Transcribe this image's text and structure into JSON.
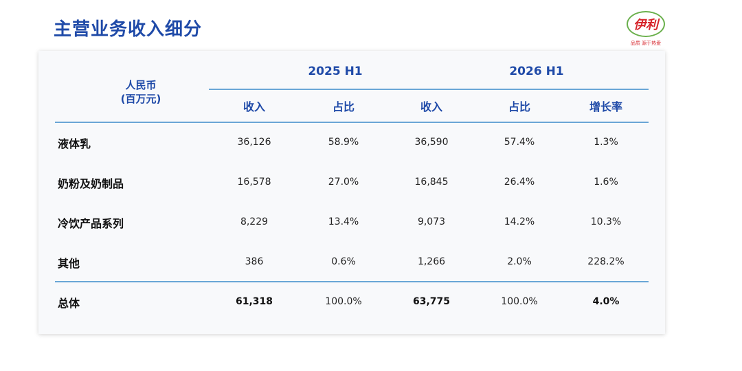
{
  "page": {
    "title": "主营业务收入细分"
  },
  "logo": {
    "brand": "伊利",
    "slogan": "品质 源于热爱"
  },
  "table": {
    "unit_line1": "人民币",
    "unit_line2": "(百万元)",
    "groups": [
      "2025 H1",
      "2026 H1"
    ],
    "subheaders": [
      "收入",
      "占比",
      "收入",
      "占比",
      "增长率"
    ],
    "rows": [
      {
        "label": "液体乳",
        "cells": [
          "36,126",
          "58.9%",
          "36,590",
          "57.4%",
          "1.3%"
        ]
      },
      {
        "label": "奶粉及奶制品",
        "cells": [
          "16,578",
          "27.0%",
          "16,845",
          "26.4%",
          "1.6%"
        ]
      },
      {
        "label": "冷饮产品系列",
        "cells": [
          "8,229",
          "13.4%",
          "9,073",
          "14.2%",
          "10.3%"
        ]
      },
      {
        "label": "其他",
        "cells": [
          "386",
          "0.6%",
          "1,266",
          "2.0%",
          "228.2%"
        ]
      }
    ],
    "total": {
      "label": "总体",
      "cells": [
        "61,318",
        "100.0%",
        "63,775",
        "100.0%",
        "4.0%"
      ]
    }
  },
  "colors": {
    "title": "#1f4aa8",
    "header_text": "#1f4aa8",
    "rule": "#6aa6d6",
    "panel_bg": "#f8f9fb",
    "logo_red": "#d6232a",
    "logo_green": "#6ab04c"
  }
}
